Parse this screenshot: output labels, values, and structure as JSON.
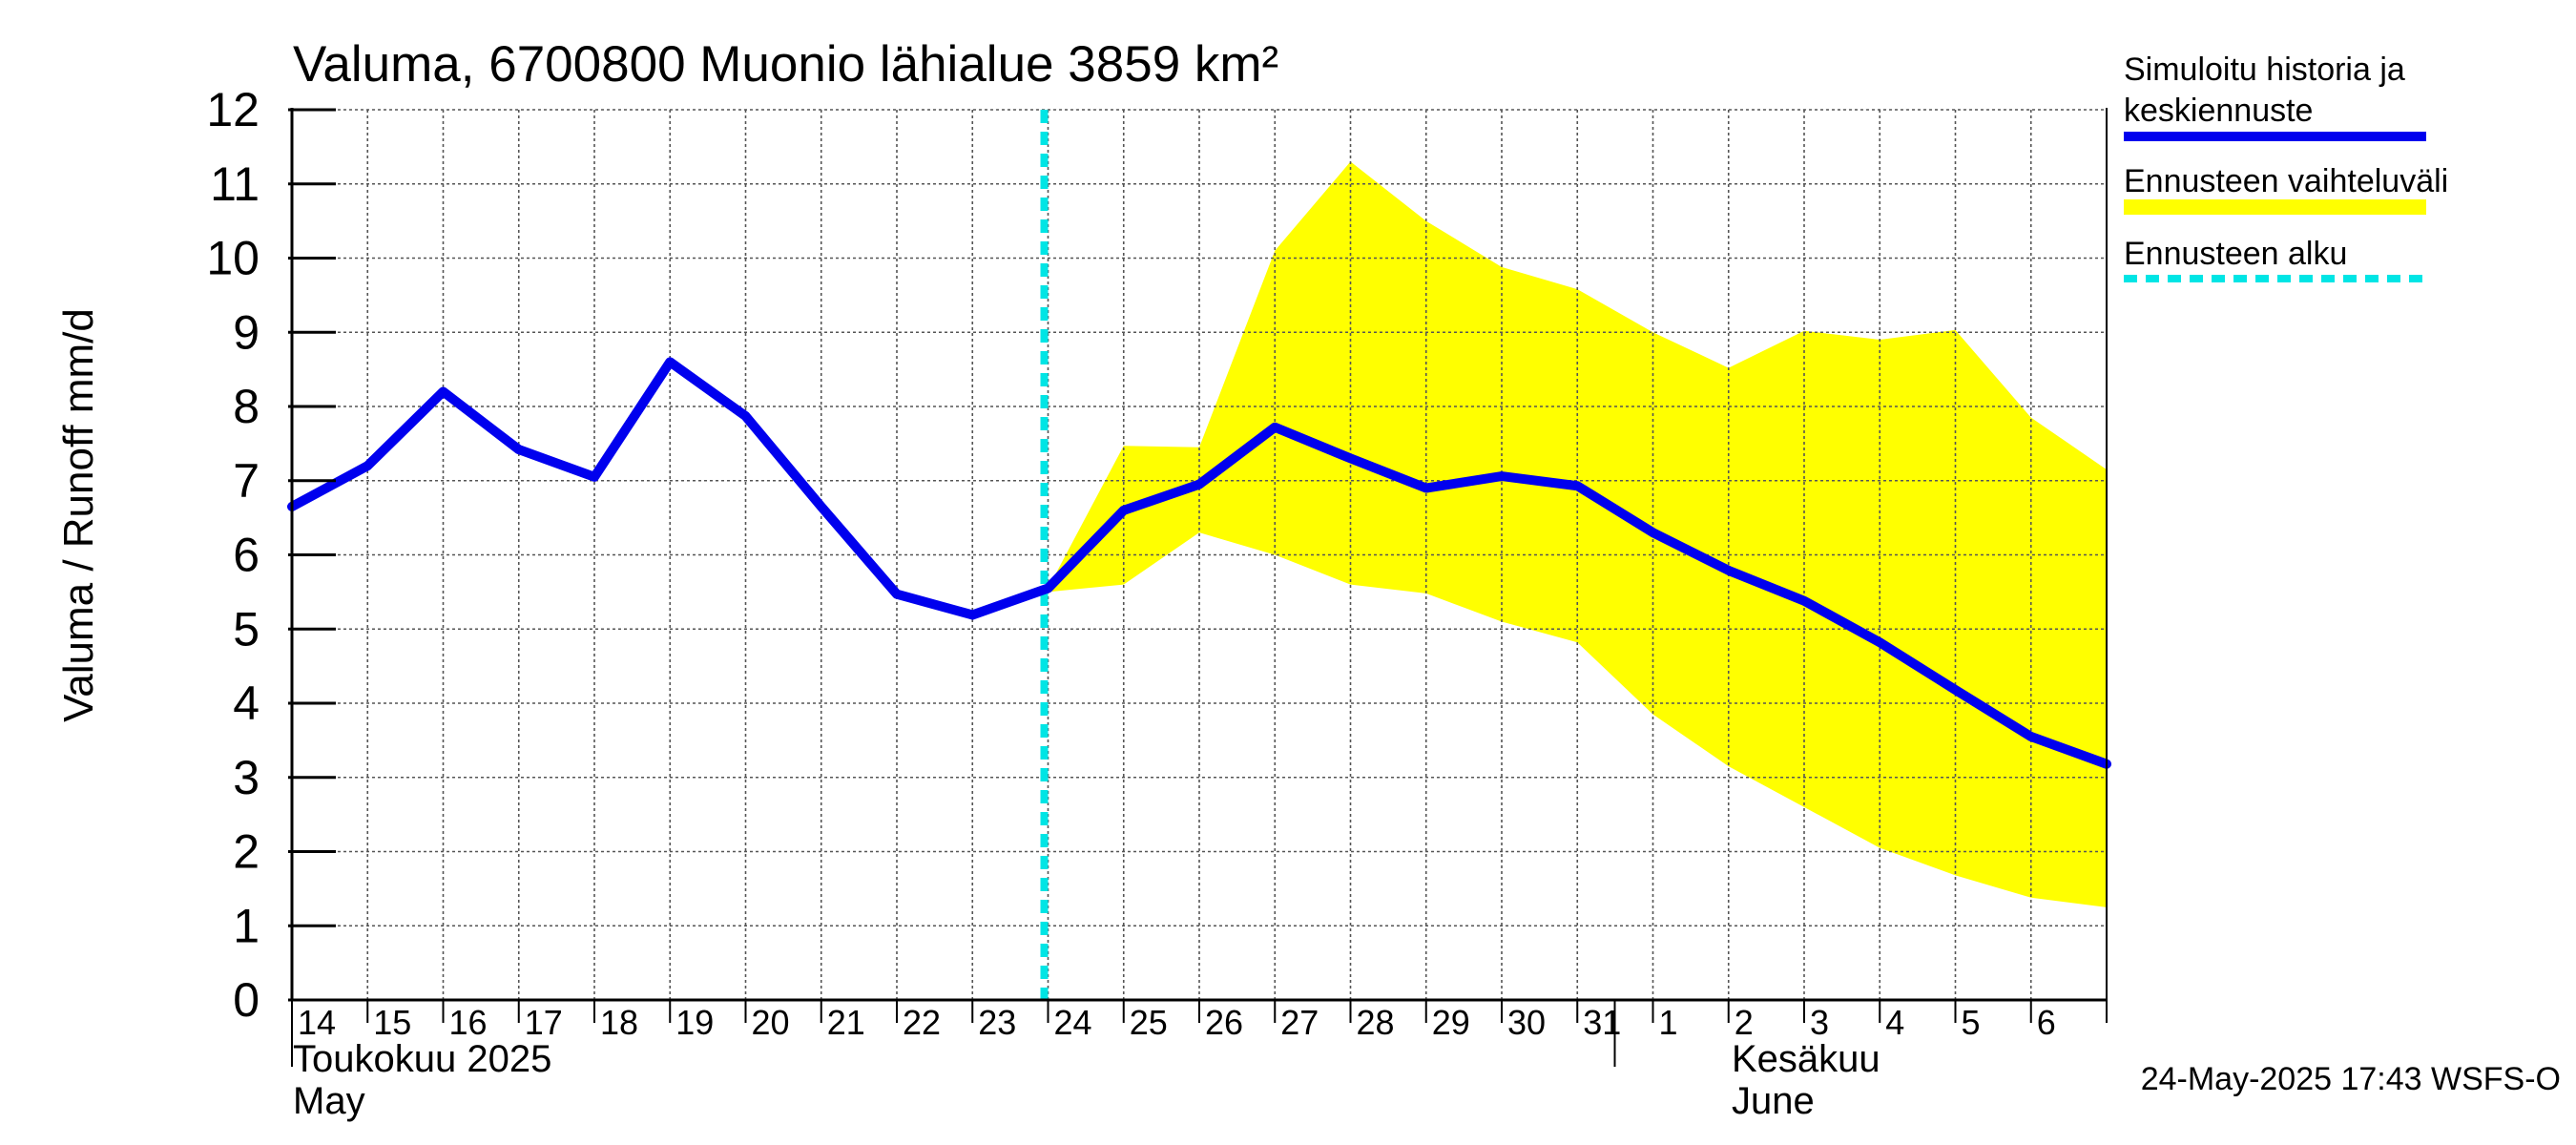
{
  "chart_data": {
    "type": "line",
    "title": "Valuma, 6700800 Muonio lähialue 3859 km²",
    "ylabel": "Valuma / Runoff    mm/d",
    "ylim": [
      0,
      12
    ],
    "yticks": [
      0,
      1,
      2,
      3,
      4,
      5,
      6,
      7,
      8,
      9,
      10,
      11,
      12
    ],
    "grid": true,
    "x_start": "2025-05-14",
    "x_end": "2025-06-07",
    "xtick_labels": [
      "14",
      "15",
      "16",
      "17",
      "18",
      "19",
      "20",
      "21",
      "22",
      "23",
      "24",
      "25",
      "26",
      "27",
      "28",
      "29",
      "30",
      "31",
      "1",
      "2",
      "3",
      "4",
      "5",
      "6"
    ],
    "month_labels": [
      {
        "fi": "Toukokuu  2025",
        "en": "May",
        "at_day": 0
      },
      {
        "fi": "Kesäkuu",
        "en": "June",
        "at_day": 18
      }
    ],
    "forecast_start_day": 10,
    "series": [
      {
        "name": "Simuloitu historia ja keskiennuste",
        "color": "#0000ee",
        "points": [
          [
            0,
            6.65
          ],
          [
            1,
            7.2
          ],
          [
            2,
            8.2
          ],
          [
            3,
            7.42
          ],
          [
            4,
            7.05
          ],
          [
            5,
            8.6
          ],
          [
            6,
            7.87
          ],
          [
            7,
            6.65
          ],
          [
            8,
            5.47
          ],
          [
            9,
            5.19
          ],
          [
            10,
            5.55
          ],
          [
            11,
            6.6
          ],
          [
            12,
            6.95
          ],
          [
            13,
            7.72
          ],
          [
            14,
            7.3
          ],
          [
            15,
            6.9
          ],
          [
            16,
            7.06
          ],
          [
            17,
            6.93
          ],
          [
            18,
            6.3
          ],
          [
            19,
            5.79
          ],
          [
            20,
            5.38
          ],
          [
            21,
            4.82
          ],
          [
            22,
            4.18
          ],
          [
            23,
            3.55
          ],
          [
            24,
            3.18
          ]
        ]
      }
    ],
    "band": {
      "name": "Ennusteen vaihteluväli",
      "color": "#ffff00",
      "upper": [
        [
          10,
          5.55
        ],
        [
          11,
          7.47
        ],
        [
          12,
          7.45
        ],
        [
          13,
          10.1
        ],
        [
          14,
          11.3
        ],
        [
          15,
          10.5
        ],
        [
          16,
          9.88
        ],
        [
          17,
          9.58
        ],
        [
          18,
          9.0
        ],
        [
          19,
          8.52
        ],
        [
          20,
          9.02
        ],
        [
          21,
          8.9
        ],
        [
          22,
          9.03
        ],
        [
          23,
          7.85
        ],
        [
          24,
          7.15
        ]
      ],
      "lower": [
        [
          10,
          5.5
        ],
        [
          11,
          5.6
        ],
        [
          12,
          6.3
        ],
        [
          13,
          6.0
        ],
        [
          14,
          5.6
        ],
        [
          15,
          5.48
        ],
        [
          16,
          5.1
        ],
        [
          17,
          4.82
        ],
        [
          18,
          3.85
        ],
        [
          19,
          3.15
        ],
        [
          20,
          2.6
        ],
        [
          21,
          2.05
        ],
        [
          22,
          1.68
        ],
        [
          23,
          1.38
        ],
        [
          24,
          1.25
        ]
      ]
    },
    "forecast_line": {
      "name": "Ennusteen alku",
      "color": "#00e5e5"
    },
    "legend": [
      {
        "label_lines": [
          "Simuloitu historia ja",
          "keskiennuste"
        ],
        "kind": "line",
        "color": "#0000ee"
      },
      {
        "label_lines": [
          "Ennusteen vaihteluväli"
        ],
        "kind": "band",
        "color": "#ffff00"
      },
      {
        "label_lines": [
          "Ennusteen alku"
        ],
        "kind": "dashed",
        "color": "#00e5e5"
      }
    ],
    "legend_placement": "right",
    "footer": "24-May-2025 17:43 WSFS-O"
  }
}
